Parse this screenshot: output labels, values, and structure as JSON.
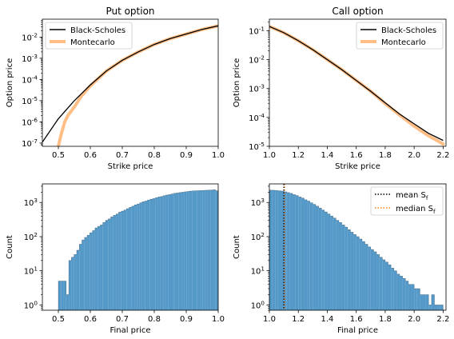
{
  "colors": {
    "black_scholes": "#000000",
    "montecarlo": "#ffbe86",
    "histogram": "#5499c7",
    "histogram_edge": "#1f3d57",
    "mean_line": "#000000",
    "median_line": "#ff7f0e"
  },
  "chart_data": [
    {
      "type": "line",
      "title": "Put option",
      "xlabel": "Strike price",
      "ylabel": "Option price",
      "xlim": [
        0.45,
        1.0
      ],
      "ylim": [
        7e-08,
        0.07
      ],
      "yscale": "log",
      "xticks": [
        "0.5",
        "0.6",
        "0.7",
        "0.8",
        "0.9",
        "1.0"
      ],
      "yticks": [
        "10<sup>-7</sup>",
        "10<sup>-6</sup>",
        "10<sup>-5</sup>",
        "10<sup>-4</sup>",
        "10<sup>-3</sup>",
        "10<sup>-2</sup>"
      ],
      "legend_position": "upper-left",
      "series": [
        {
          "name": "Black-Scholes",
          "x": [
            0.45,
            0.5,
            0.55,
            0.6,
            0.65,
            0.7,
            0.75,
            0.8,
            0.85,
            0.9,
            0.95,
            1.0
          ],
          "y": [
            1.1e-07,
            1.4e-06,
            1e-05,
            5.5e-05,
            0.00025,
            0.0008,
            0.002,
            0.0045,
            0.0085,
            0.014,
            0.023,
            0.034
          ]
        },
        {
          "name": "Montecarlo",
          "x": [
            0.5,
            0.51,
            0.52,
            0.53,
            0.55,
            0.57,
            0.6,
            0.65,
            0.7,
            0.75,
            0.8,
            0.85,
            0.9,
            0.95,
            1.0
          ],
          "y": [
            7e-08,
            3e-07,
            1e-06,
            2e-06,
            5e-06,
            1.5e-05,
            5e-05,
            0.00025,
            0.0008,
            0.002,
            0.0045,
            0.0085,
            0.014,
            0.023,
            0.034
          ]
        }
      ]
    },
    {
      "type": "line",
      "title": "Call option",
      "xlabel": "Strike price",
      "ylabel": "Option price",
      "xlim": [
        1.0,
        2.22
      ],
      "ylim": [
        1e-05,
        0.25
      ],
      "yscale": "log",
      "xticks": [
        "1.0",
        "1.2",
        "1.4",
        "1.6",
        "1.8",
        "2.0",
        "2.2"
      ],
      "yticks": [
        "10<sup>-5</sup>",
        "10<sup>-4</sup>",
        "10<sup>-3</sup>",
        "10<sup>-2</sup>",
        "10<sup>-1</sup>"
      ],
      "legend_position": "upper-right",
      "series": [
        {
          "name": "Black-Scholes",
          "x": [
            1.0,
            1.1,
            1.2,
            1.3,
            1.4,
            1.5,
            1.6,
            1.7,
            1.8,
            1.9,
            2.0,
            2.1,
            2.2
          ],
          "y": [
            0.14,
            0.085,
            0.045,
            0.022,
            0.01,
            0.0045,
            0.0019,
            0.0008,
            0.00032,
            0.00013,
            6e-05,
            2.8e-05,
            1.6e-05
          ]
        },
        {
          "name": "Montecarlo",
          "x": [
            1.0,
            1.1,
            1.2,
            1.3,
            1.4,
            1.5,
            1.6,
            1.7,
            1.8,
            1.9,
            2.0,
            2.1,
            2.2
          ],
          "y": [
            0.14,
            0.085,
            0.045,
            0.022,
            0.01,
            0.0045,
            0.0019,
            0.0008,
            0.0003,
            0.00012,
            5e-05,
            2.3e-05,
            1.2e-05
          ]
        }
      ]
    },
    {
      "type": "histogram",
      "xlabel": "Final price",
      "ylabel": "Count",
      "xlim": [
        0.45,
        1.0
      ],
      "ylim": [
        0.7,
        3500
      ],
      "yscale": "log",
      "xticks": [
        "0.5",
        "0.6",
        "0.7",
        "0.8",
        "0.9",
        "1.0"
      ],
      "yticks": [
        "10<sup>0</sup>",
        "10<sup>1</sup>",
        "10<sup>2</sup>",
        "10<sup>3</sup>"
      ],
      "bin_range": [
        0.5,
        1.0
      ],
      "counts": [
        5,
        5,
        5,
        2,
        20,
        25,
        30,
        40,
        60,
        80,
        95,
        110,
        130,
        150,
        180,
        200,
        220,
        260,
        300,
        330,
        380,
        420,
        460,
        520,
        560,
        600,
        660,
        720,
        780,
        850,
        900,
        980,
        1050,
        1100,
        1180,
        1250,
        1300,
        1380,
        1450,
        1500,
        1580,
        1650,
        1700,
        1780,
        1850,
        1900,
        1950,
        2000,
        2050,
        2100,
        2150,
        2180,
        2200,
        2220,
        2240,
        2260,
        2280,
        2300,
        2320,
        2350,
        2200
      ]
    },
    {
      "type": "histogram",
      "xlabel": "Final price",
      "ylabel": "Count",
      "xlim": [
        1.0,
        2.22
      ],
      "ylim": [
        0.7,
        3500
      ],
      "yscale": "log",
      "xticks": [
        "1.0",
        "1.2",
        "1.4",
        "1.6",
        "1.8",
        "2.0",
        "2.2"
      ],
      "yticks": [
        "10<sup>0</sup>",
        "10<sup>1</sup>",
        "10<sup>2</sup>",
        "10<sup>3</sup>"
      ],
      "legend_position": "upper-right",
      "mean": 1.1,
      "median": 1.105,
      "bin_range": [
        1.0,
        2.2
      ],
      "counts": [
        2300,
        2280,
        2250,
        2200,
        2150,
        2050,
        1950,
        1850,
        1700,
        1600,
        1450,
        1350,
        1200,
        1100,
        980,
        880,
        780,
        690,
        600,
        530,
        460,
        400,
        350,
        300,
        260,
        220,
        190,
        160,
        135,
        115,
        100,
        85,
        72,
        60,
        50,
        42,
        36,
        30,
        25,
        21,
        18,
        15,
        12,
        10,
        8,
        7,
        6,
        5,
        4,
        4,
        3,
        3,
        2,
        2,
        2,
        1,
        2,
        1,
        1,
        1
      ],
      "legend": {
        "mean_label": "mean S<sub>f</sub>",
        "median_label": "median S<sub>f</sub>"
      }
    }
  ]
}
